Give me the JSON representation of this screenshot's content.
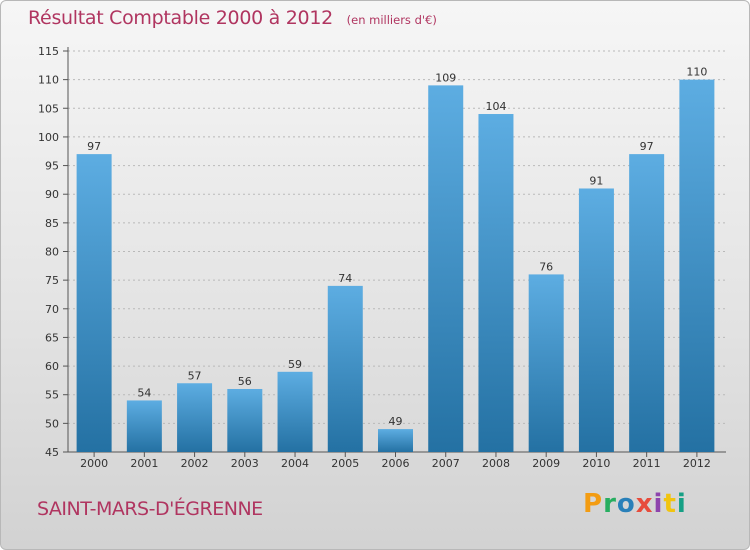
{
  "header": {
    "title": "Résultat Comptable 2000 à 2012",
    "unit": "(en milliers d'€)"
  },
  "footer": {
    "location": "SAINT-MARS-D'ÉGRENNE",
    "brand_letters": [
      "P",
      "r",
      "o",
      "x",
      "i",
      "t",
      "i"
    ],
    "brand_colors": [
      "#f39c12",
      "#27ae60",
      "#2980b9",
      "#e74c3c",
      "#8e44ad",
      "#f1c40f",
      "#16a085"
    ]
  },
  "colors": {
    "accent": "#b03560",
    "bar_light": "#5dade2",
    "bar_dark": "#2471a3"
  },
  "chart_data": {
    "type": "bar",
    "title": "Résultat Comptable 2000 à 2012",
    "categories": [
      "2000",
      "2001",
      "2002",
      "2003",
      "2004",
      "2005",
      "2006",
      "2007",
      "2008",
      "2009",
      "2010",
      "2011",
      "2012"
    ],
    "values": [
      97,
      54,
      57,
      56,
      59,
      74,
      49,
      109,
      104,
      76,
      91,
      97,
      110
    ],
    "ylim": [
      45,
      115
    ],
    "yticks": [
      45,
      50,
      55,
      60,
      65,
      70,
      75,
      80,
      85,
      90,
      95,
      100,
      105,
      110,
      115
    ],
    "grid": true,
    "xlabel": "",
    "ylabel": ""
  }
}
